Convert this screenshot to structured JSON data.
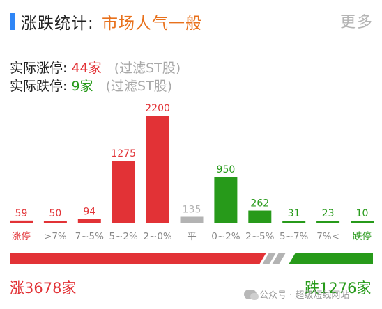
{
  "header": {
    "title": "涨跌统计:",
    "sentiment": "市场人气一般",
    "more_label": "更多"
  },
  "stats": {
    "limit_up_label": "实际涨停:",
    "limit_up_value": "44家",
    "limit_up_note": "(过滤ST股)",
    "limit_down_label": "实际跌停:",
    "limit_down_value": "9家",
    "limit_down_note": "(过滤ST股)"
  },
  "chart_data": {
    "type": "bar",
    "categories": [
      "涨停",
      ">7%",
      "7~5%",
      "5~2%",
      "2~0%",
      "平",
      "0~2%",
      "2~5%",
      "5~7%",
      "7%<",
      "跌停"
    ],
    "values": [
      59,
      50,
      94,
      1275,
      2200,
      135,
      950,
      262,
      31,
      23,
      10
    ],
    "value_labels": [
      "59",
      "50",
      "94",
      "1275",
      "2200",
      "135",
      "950",
      "262",
      "31",
      "23",
      "10"
    ],
    "colors": [
      "#e23236",
      "#e23236",
      "#e23236",
      "#e23236",
      "#e23236",
      "#b3b3b3",
      "#279a1a",
      "#279a1a",
      "#279a1a",
      "#279a1a",
      "#279a1a"
    ],
    "label_colors": [
      "#e23236",
      "#888888",
      "#888888",
      "#888888",
      "#888888",
      "#888888",
      "#888888",
      "#888888",
      "#888888",
      "#888888",
      "#279a1a"
    ],
    "title": "",
    "xlabel": "",
    "ylabel": "",
    "ylim": [
      0,
      2200
    ],
    "grid": false,
    "legend": "none"
  },
  "totals": {
    "up_label": "涨3678家",
    "down_label": "跌1276家",
    "up_count": 3678,
    "down_count": 1276,
    "up_color": "#e23236",
    "down_color": "#279a1a",
    "flat_color": "#b3b3b3"
  },
  "watermark": {
    "text": "公众号 · 超级短线网站"
  }
}
